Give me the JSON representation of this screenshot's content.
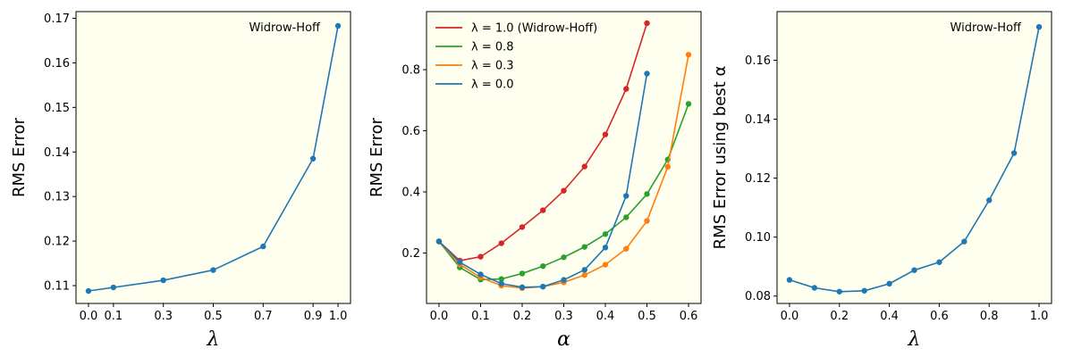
{
  "chart_data": [
    {
      "type": "line",
      "xlabel": "λ",
      "ylabel": "RMS Error",
      "xlim": [
        -0.05,
        1.05
      ],
      "ylim": [
        0.106,
        0.1715
      ],
      "xticks": [
        0.0,
        0.1,
        0.3,
        0.5,
        0.7,
        0.9,
        1.0
      ],
      "xtick_labels": [
        "0.0",
        "0.1",
        "0.3",
        "0.5",
        "0.7",
        "0.9",
        "1.0"
      ],
      "yticks": [
        0.11,
        0.12,
        0.13,
        0.14,
        0.15,
        0.16,
        0.17
      ],
      "ytick_labels": [
        "0.11",
        "0.12",
        "0.13",
        "0.14",
        "0.15",
        "0.16",
        "0.17"
      ],
      "annotation": "Widrow-Hoff",
      "grid": false,
      "series": [
        {
          "color": "#1f77b4",
          "x": [
            0.0,
            0.1,
            0.3,
            0.5,
            0.7,
            0.9,
            1.0
          ],
          "y": [
            0.1088,
            0.1096,
            0.1112,
            0.1135,
            0.1188,
            0.1385,
            0.1683
          ]
        }
      ]
    },
    {
      "type": "line",
      "xlabel": "α",
      "ylabel": "RMS Error",
      "xlim": [
        -0.03,
        0.63
      ],
      "ylim": [
        0.035,
        0.99
      ],
      "xticks": [
        0.0,
        0.1,
        0.2,
        0.3,
        0.4,
        0.5,
        0.6
      ],
      "xtick_labels": [
        "0.0",
        "0.1",
        "0.2",
        "0.3",
        "0.4",
        "0.5",
        "0.6"
      ],
      "yticks": [
        0.2,
        0.4,
        0.6,
        0.8
      ],
      "ytick_labels": [
        "0.2",
        "0.4",
        "0.6",
        "0.8"
      ],
      "legend_position": "upper-left",
      "grid": false,
      "series": [
        {
          "name": "λ = 1.0 (Widrow-Hoff)",
          "color": "#d62728",
          "x": [
            0.0,
            0.05,
            0.1,
            0.15,
            0.2,
            0.25,
            0.3,
            0.35,
            0.4,
            0.45,
            0.5
          ],
          "y": [
            0.238,
            0.175,
            0.188,
            0.232,
            0.285,
            0.34,
            0.404,
            0.483,
            0.588,
            0.737,
            0.952
          ]
        },
        {
          "name": "λ = 0.8",
          "color": "#2ca02c",
          "x": [
            0.0,
            0.05,
            0.1,
            0.15,
            0.2,
            0.25,
            0.3,
            0.35,
            0.4,
            0.45,
            0.5,
            0.55,
            0.6
          ],
          "y": [
            0.238,
            0.153,
            0.113,
            0.115,
            0.133,
            0.157,
            0.186,
            0.22,
            0.262,
            0.317,
            0.393,
            0.506,
            0.688
          ]
        },
        {
          "name": "λ = 0.3",
          "color": "#ff7f0e",
          "x": [
            0.0,
            0.05,
            0.1,
            0.15,
            0.2,
            0.25,
            0.3,
            0.35,
            0.4,
            0.45,
            0.5,
            0.55,
            0.6
          ],
          "y": [
            0.238,
            0.163,
            0.12,
            0.093,
            0.085,
            0.09,
            0.104,
            0.128,
            0.162,
            0.214,
            0.305,
            0.482,
            0.849
          ]
        },
        {
          "name": "λ = 0.0",
          "color": "#1f77b4",
          "x": [
            0.0,
            0.05,
            0.1,
            0.15,
            0.2,
            0.25,
            0.3,
            0.35,
            0.4,
            0.45,
            0.5
          ],
          "y": [
            0.238,
            0.17,
            0.13,
            0.1,
            0.088,
            0.09,
            0.112,
            0.145,
            0.218,
            0.387,
            0.787
          ]
        }
      ]
    },
    {
      "type": "line",
      "xlabel": "λ",
      "ylabel": "RMS Error using best α",
      "xlim": [
        -0.05,
        1.05
      ],
      "ylim": [
        0.0775,
        0.1765
      ],
      "xticks": [
        0.0,
        0.2,
        0.4,
        0.6,
        0.8,
        1.0
      ],
      "xtick_labels": [
        "0.0",
        "0.2",
        "0.4",
        "0.6",
        "0.8",
        "1.0"
      ],
      "yticks": [
        0.08,
        0.1,
        0.12,
        0.14,
        0.16
      ],
      "ytick_labels": [
        "0.08",
        "0.10",
        "0.12",
        "0.14",
        "0.16"
      ],
      "annotation": "Widrow-Hoff",
      "grid": false,
      "series": [
        {
          "color": "#1f77b4",
          "x": [
            0.0,
            0.1,
            0.2,
            0.3,
            0.4,
            0.5,
            0.6,
            0.7,
            0.8,
            0.9,
            1.0
          ],
          "y": [
            0.0855,
            0.0828,
            0.0815,
            0.0818,
            0.0842,
            0.0888,
            0.0915,
            0.0985,
            0.1125,
            0.1285,
            0.1713
          ]
        }
      ]
    }
  ]
}
